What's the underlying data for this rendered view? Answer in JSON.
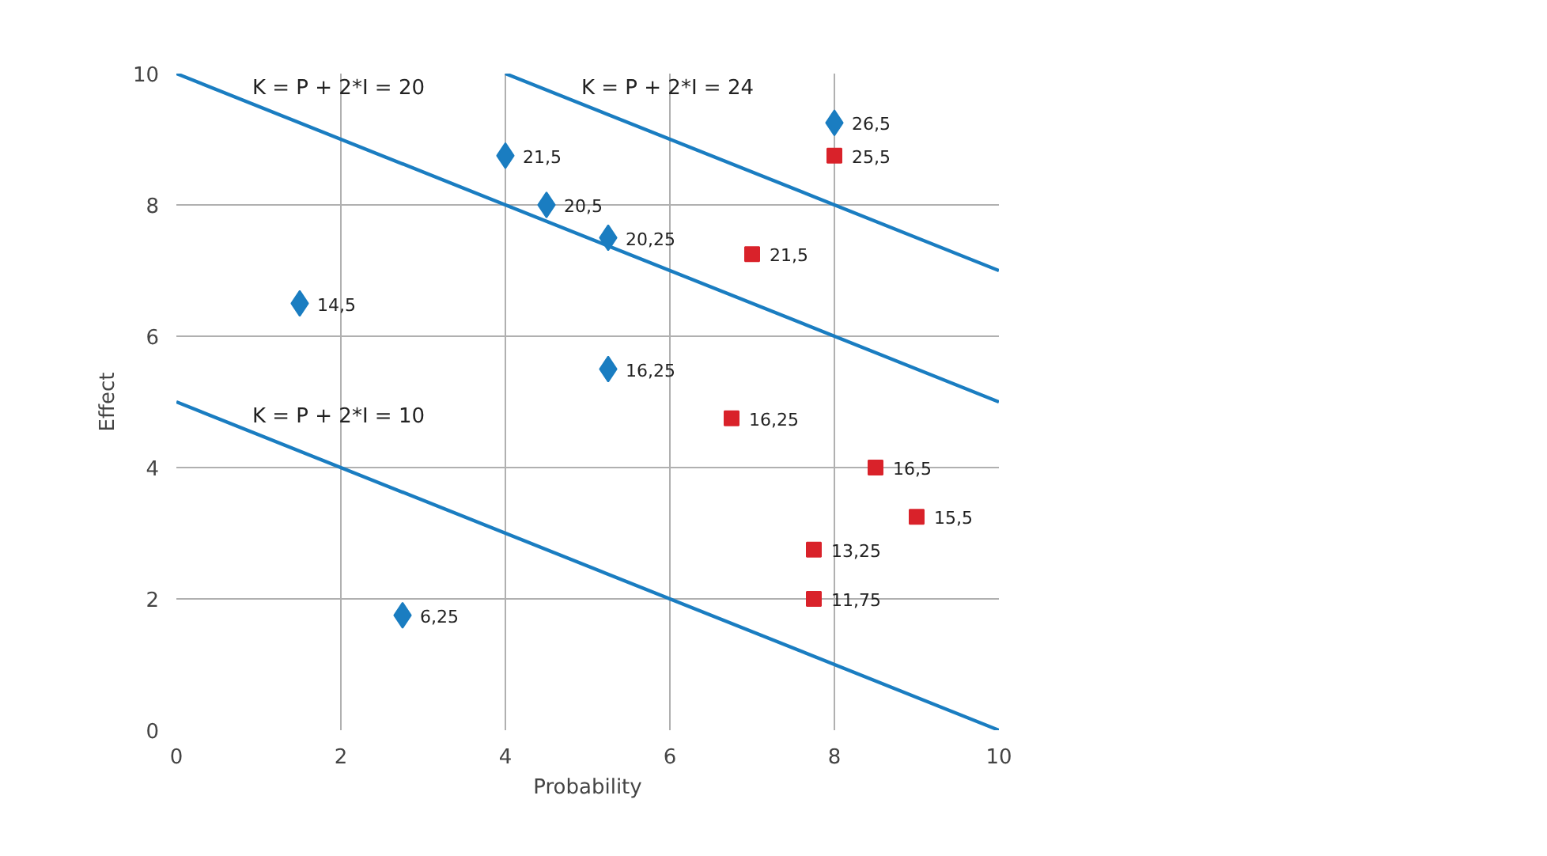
{
  "chart_data": {
    "type": "scatter",
    "xlabel": "Probability",
    "ylabel": "Effect",
    "xlim": [
      0,
      10
    ],
    "ylim": [
      0,
      10
    ],
    "xticks": [
      0,
      2,
      4,
      6,
      8,
      10
    ],
    "yticks": [
      0,
      2,
      4,
      6,
      8,
      10
    ],
    "grid": true,
    "series": [
      {
        "marker": "diamond",
        "color": "#1a7dc1",
        "x": [
          1.5,
          2.75,
          4,
          4.5,
          5.25,
          5.25,
          8
        ],
        "values": [
          6.5,
          1.75,
          8.75,
          8,
          7.5,
          5.5,
          9.25
        ]
      },
      {
        "marker": "square",
        "color": "#d9222a",
        "x": [
          8,
          7,
          6.75,
          8.5,
          9,
          7.75,
          7.75
        ],
        "values": [
          8.75,
          7.25,
          4.75,
          4,
          3.25,
          2.75,
          2
        ]
      },
      {
        "type": "line",
        "name": "K = P + 2*I = 10",
        "color": "#1a7dc1",
        "x": [
          0,
          10
        ],
        "values": [
          5,
          0
        ]
      },
      {
        "type": "line",
        "name": "K = P + 2*I = 20",
        "color": "#1a7dc1",
        "x": [
          0,
          10
        ],
        "values": [
          10,
          5
        ]
      },
      {
        "type": "line",
        "name": "K = P + 2*I = 24",
        "color": "#1a7dc1",
        "x": [
          4,
          10
        ],
        "values": [
          10,
          7
        ]
      }
    ],
    "annotations": [
      {
        "text": "14,5",
        "x": 1.5,
        "y": 6.5
      },
      {
        "text": "6,25",
        "x": 2.75,
        "y": 1.75
      },
      {
        "text": "21,5",
        "x": 4,
        "y": 8.75
      },
      {
        "text": "20,5",
        "x": 4.5,
        "y": 8
      },
      {
        "text": "20,25",
        "x": 5.25,
        "y": 7.5
      },
      {
        "text": "16,25",
        "x": 5.25,
        "y": 5.5
      },
      {
        "text": "26,5",
        "x": 8,
        "y": 9.25
      },
      {
        "text": "25,5",
        "x": 8,
        "y": 8.75
      },
      {
        "text": "21,5",
        "x": 7,
        "y": 7.25
      },
      {
        "text": "16,25",
        "x": 6.75,
        "y": 4.75
      },
      {
        "text": "16,5",
        "x": 8.5,
        "y": 4
      },
      {
        "text": "15,5",
        "x": 9,
        "y": 3.25
      },
      {
        "text": "13,25",
        "x": 7.75,
        "y": 2.75
      },
      {
        "text": "11,75",
        "x": 7.75,
        "y": 2
      }
    ]
  }
}
